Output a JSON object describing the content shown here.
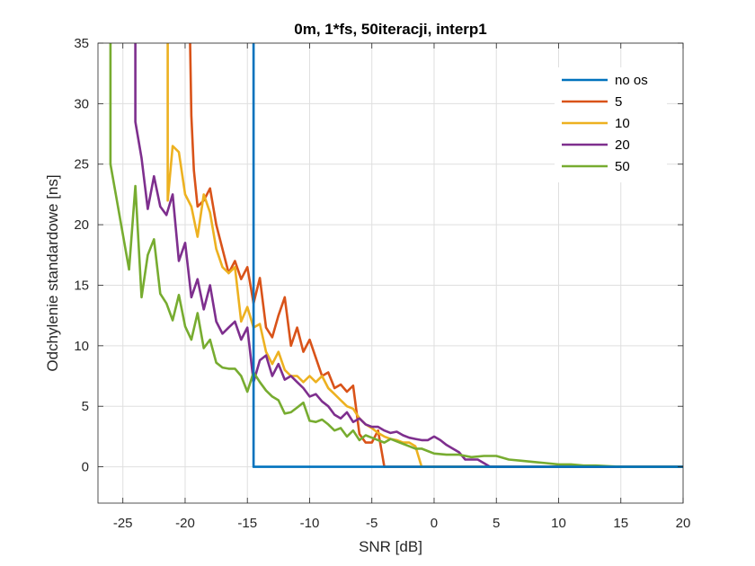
{
  "chart_data": {
    "type": "line",
    "title": "0m, 1*fs, 50iteracji, interp1",
    "xlabel": "SNR [dB]",
    "ylabel": "Odchylenie standardowe [ns]",
    "xlim": [
      -27,
      20
    ],
    "ylim": [
      -3,
      35
    ],
    "xticks": [
      -25,
      -20,
      -15,
      -10,
      -5,
      0,
      5,
      10,
      15,
      20
    ],
    "yticks": [
      0,
      5,
      10,
      15,
      20,
      25,
      30,
      35
    ],
    "grid": true,
    "legend_position": "top-right",
    "series": [
      {
        "name": "no os",
        "color": "#0072BD",
        "points": [
          [
            -14.5,
            35
          ],
          [
            -14.5,
            0
          ],
          [
            20,
            0
          ]
        ]
      },
      {
        "name": "5",
        "color": "#D95319",
        "points": [
          [
            -19.6,
            35
          ],
          [
            -19.5,
            29
          ],
          [
            -19.3,
            24.5
          ],
          [
            -19,
            21.5
          ],
          [
            -18.5,
            22
          ],
          [
            -18,
            23
          ],
          [
            -17.5,
            20
          ],
          [
            -17,
            18
          ],
          [
            -16.5,
            16
          ],
          [
            -16,
            17
          ],
          [
            -15.5,
            15.5
          ],
          [
            -15,
            16.5
          ],
          [
            -14.5,
            13.5
          ],
          [
            -14,
            15.6
          ],
          [
            -13.5,
            11.5
          ],
          [
            -13,
            10.7
          ],
          [
            -12.5,
            12.5
          ],
          [
            -12,
            14
          ],
          [
            -11.5,
            10
          ],
          [
            -11,
            11.5
          ],
          [
            -10.5,
            9.5
          ],
          [
            -10,
            10.5
          ],
          [
            -9.5,
            9
          ],
          [
            -9,
            7.5
          ],
          [
            -8.5,
            7.8
          ],
          [
            -8,
            6.5
          ],
          [
            -7.5,
            6.8
          ],
          [
            -7,
            6.2
          ],
          [
            -6.5,
            6.7
          ],
          [
            -6,
            2.7
          ],
          [
            -5.5,
            2
          ],
          [
            -5,
            2
          ],
          [
            -4.5,
            3
          ],
          [
            -4,
            0
          ],
          [
            20,
            0
          ]
        ]
      },
      {
        "name": "10",
        "color": "#EDB120",
        "points": [
          [
            -21.4,
            35
          ],
          [
            -21.4,
            22
          ],
          [
            -21,
            26.5
          ],
          [
            -20.5,
            26
          ],
          [
            -20,
            22.5
          ],
          [
            -19.5,
            21.5
          ],
          [
            -19,
            19
          ],
          [
            -18.5,
            22.5
          ],
          [
            -18,
            21
          ],
          [
            -17.5,
            18
          ],
          [
            -17,
            16.5
          ],
          [
            -16.5,
            16
          ],
          [
            -16,
            16.5
          ],
          [
            -15.5,
            12
          ],
          [
            -15,
            13.2
          ],
          [
            -14.5,
            11.5
          ],
          [
            -14,
            11.8
          ],
          [
            -13.5,
            9.5
          ],
          [
            -13,
            8.5
          ],
          [
            -12.5,
            9.5
          ],
          [
            -12,
            8
          ],
          [
            -11.5,
            7.5
          ],
          [
            -11,
            7.5
          ],
          [
            -10.5,
            7
          ],
          [
            -10,
            7.5
          ],
          [
            -9.5,
            7
          ],
          [
            -9,
            7.5
          ],
          [
            -8.5,
            6.5
          ],
          [
            -8,
            6
          ],
          [
            -7.5,
            5.5
          ],
          [
            -7,
            5
          ],
          [
            -6.5,
            4.8
          ],
          [
            -6,
            4
          ],
          [
            -5.5,
            3.5
          ],
          [
            -5,
            3.2
          ],
          [
            -4.5,
            2.8
          ],
          [
            -4,
            2.5
          ],
          [
            -3.5,
            2.3
          ],
          [
            -3,
            2.2
          ],
          [
            -2.5,
            2
          ],
          [
            -2,
            2
          ],
          [
            -1.5,
            1.7
          ],
          [
            -1,
            0
          ],
          [
            20,
            0
          ]
        ]
      },
      {
        "name": "20",
        "color": "#7E2F8E",
        "points": [
          [
            -24,
            35
          ],
          [
            -24,
            28.5
          ],
          [
            -23.5,
            25.5
          ],
          [
            -23,
            21.3
          ],
          [
            -22.5,
            24
          ],
          [
            -22,
            21.5
          ],
          [
            -21.5,
            20.8
          ],
          [
            -21,
            22.5
          ],
          [
            -20.5,
            17
          ],
          [
            -20,
            18.5
          ],
          [
            -19.5,
            14
          ],
          [
            -19,
            15.5
          ],
          [
            -18.5,
            13
          ],
          [
            -18,
            15
          ],
          [
            -17.5,
            12
          ],
          [
            -17,
            11
          ],
          [
            -16.5,
            11.5
          ],
          [
            -16,
            12
          ],
          [
            -15.5,
            10.5
          ],
          [
            -15,
            11.5
          ],
          [
            -14.5,
            7
          ],
          [
            -14,
            8.8
          ],
          [
            -13.5,
            9.2
          ],
          [
            -13,
            7.5
          ],
          [
            -12.5,
            8.5
          ],
          [
            -12,
            7.2
          ],
          [
            -11.5,
            7.5
          ],
          [
            -11,
            7
          ],
          [
            -10.5,
            6.5
          ],
          [
            -10,
            5.8
          ],
          [
            -9.5,
            6
          ],
          [
            -9,
            5.4
          ],
          [
            -8.5,
            5
          ],
          [
            -8,
            4.3
          ],
          [
            -7.5,
            4
          ],
          [
            -7,
            4.5
          ],
          [
            -6.5,
            3.7
          ],
          [
            -6,
            4
          ],
          [
            -5.5,
            3.5
          ],
          [
            -5,
            3.3
          ],
          [
            -4.5,
            3.3
          ],
          [
            -4,
            3
          ],
          [
            -3.5,
            2.8
          ],
          [
            -3,
            2.9
          ],
          [
            -2.5,
            2.6
          ],
          [
            -2,
            2.4
          ],
          [
            -1.5,
            2.3
          ],
          [
            -1,
            2.2
          ],
          [
            -0.5,
            2.2
          ],
          [
            0,
            2.5
          ],
          [
            0.5,
            2.2
          ],
          [
            1,
            1.8
          ],
          [
            1.5,
            1.5
          ],
          [
            2,
            1.2
          ],
          [
            2.5,
            0.6
          ],
          [
            3,
            0.6
          ],
          [
            3.5,
            0.6
          ],
          [
            4,
            0.3
          ],
          [
            4.5,
            0
          ],
          [
            20,
            0
          ]
        ]
      },
      {
        "name": "50",
        "color": "#77AC30",
        "points": [
          [
            -26,
            35
          ],
          [
            -26,
            25
          ],
          [
            -24.5,
            16.3
          ],
          [
            -24,
            23.2
          ],
          [
            -23.5,
            14
          ],
          [
            -23,
            17.5
          ],
          [
            -22.5,
            18.8
          ],
          [
            -22,
            14.3
          ],
          [
            -21.5,
            13.5
          ],
          [
            -21,
            12.1
          ],
          [
            -20.5,
            14.2
          ],
          [
            -20,
            11.6
          ],
          [
            -19.5,
            10.5
          ],
          [
            -19,
            12.7
          ],
          [
            -18.5,
            9.8
          ],
          [
            -18,
            10.5
          ],
          [
            -17.5,
            8.6
          ],
          [
            -17,
            8.2
          ],
          [
            -16.5,
            8.1
          ],
          [
            -16,
            8.1
          ],
          [
            -15.5,
            7.5
          ],
          [
            -15,
            6.2
          ],
          [
            -14.5,
            7.8
          ],
          [
            -14,
            7
          ],
          [
            -13.5,
            6.3
          ],
          [
            -13,
            5.8
          ],
          [
            -12.5,
            5.5
          ],
          [
            -12,
            4.4
          ],
          [
            -11.5,
            4.5
          ],
          [
            -11,
            4.9
          ],
          [
            -10.5,
            5.3
          ],
          [
            -10,
            3.8
          ],
          [
            -9.5,
            3.7
          ],
          [
            -9,
            3.9
          ],
          [
            -8.5,
            3.5
          ],
          [
            -8,
            3
          ],
          [
            -7.5,
            3.2
          ],
          [
            -7,
            2.5
          ],
          [
            -6.5,
            3
          ],
          [
            -6,
            2.2
          ],
          [
            -5.5,
            2.6
          ],
          [
            -5,
            2.4
          ],
          [
            -4.5,
            2.2
          ],
          [
            -4,
            2
          ],
          [
            -3.5,
            2.3
          ],
          [
            -3,
            2.1
          ],
          [
            -2.5,
            1.9
          ],
          [
            -2,
            1.7
          ],
          [
            -1.5,
            1.5
          ],
          [
            -1,
            1.5
          ],
          [
            -0.5,
            1.3
          ],
          [
            0,
            1.1
          ],
          [
            1,
            1
          ],
          [
            2,
            1
          ],
          [
            3,
            0.8
          ],
          [
            4,
            0.9
          ],
          [
            5,
            0.9
          ],
          [
            6,
            0.6
          ],
          [
            7,
            0.5
          ],
          [
            8,
            0.4
          ],
          [
            9,
            0.3
          ],
          [
            10,
            0.2
          ],
          [
            11,
            0.2
          ],
          [
            12,
            0.1
          ],
          [
            13,
            0.1
          ],
          [
            14,
            0.05
          ],
          [
            15,
            0
          ],
          [
            20,
            0
          ]
        ]
      }
    ]
  }
}
